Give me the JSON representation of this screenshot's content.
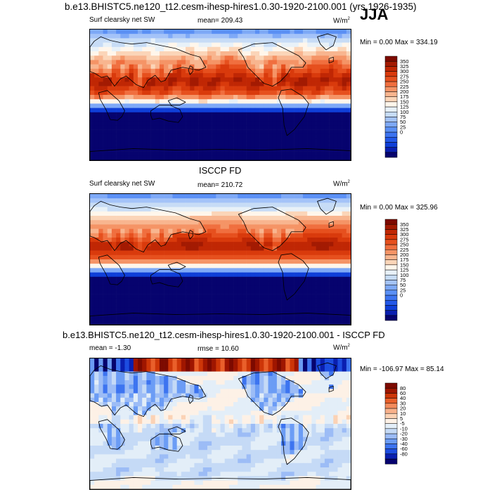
{
  "header": {
    "title": "b.e13.BHISTC5.ne120_t12.cesm-ihesp-hires1.0.30-1920-2100.001 (yrs 1926-1935)",
    "season": "JJA"
  },
  "colors": {
    "levels_abs": [
      "#06036e",
      "#0a1fb0",
      "#0f3fd8",
      "#2358e8",
      "#3d74f0",
      "#5b90f5",
      "#7ea9f7",
      "#a4c3f8",
      "#c7dcf6",
      "#e8f1f8",
      "#fff6eb",
      "#fbd5b8",
      "#f8b58f",
      "#f59466",
      "#f06f3f",
      "#e6501e",
      "#d93a0c",
      "#c02704",
      "#a31a02",
      "#7d0a00"
    ],
    "levels_diff": [
      "#06036e",
      "#0a1fb0",
      "#1d4de0",
      "#3d74f0",
      "#6b9cf5",
      "#9cbcf6",
      "#c5daf6",
      "#e3eef8",
      "#fdf1e6",
      "#fbd2b5",
      "#f8b18b",
      "#f38c5d",
      "#e9602b",
      "#cd3608",
      "#9f1600",
      "#7d0a00"
    ]
  },
  "chart_data": [
    {
      "type": "heatmap",
      "name": "model",
      "title": "b.e13.BHISTC5.ne120_t12.cesm-ihesp-hires1.0.30-1920-2100.001 (yrs 1926-1935)",
      "variable": "Surf clearsky net SW",
      "mean_label": "mean= 209.43",
      "units": "W/m",
      "units_sup": "2",
      "minmax": "Min =   0.00 Max = 334.19",
      "min": 0.0,
      "max": 334.19,
      "colorbar_ticks": [
        "350",
        "325",
        "300",
        "275",
        "250",
        "225",
        "200",
        "175",
        "150",
        "125",
        "100",
        "75",
        "50",
        "25",
        "0"
      ]
    },
    {
      "type": "heatmap",
      "name": "obs",
      "title": "ISCCP FD",
      "variable": "Surf clearsky net SW",
      "mean_label": "mean= 210.72",
      "units": "W/m",
      "units_sup": "2",
      "minmax": "Min =   0.00 Max = 325.96",
      "min": 0.0,
      "max": 325.96,
      "colorbar_ticks": [
        "350",
        "325",
        "300",
        "275",
        "250",
        "225",
        "200",
        "175",
        "150",
        "125",
        "100",
        "75",
        "50",
        "25",
        "0"
      ]
    },
    {
      "type": "heatmap",
      "name": "difference",
      "title": "b.e13.BHISTC5.ne120_t12.cesm-ihesp-hires1.0.30-1920-2100.001 - ISCCP FD",
      "mean_label": "mean =  -1.30",
      "rmse_label": "rmse =  10.60",
      "units": "W/m",
      "units_sup": "2",
      "minmax": "Min = -106.97 Max =  85.14",
      "min": -106.97,
      "max": 85.14,
      "colorbar_ticks": [
        "80",
        "60",
        "40",
        "30",
        "20",
        "10",
        "5",
        "-5",
        "-10",
        "-20",
        "-30",
        "-40",
        "-60",
        "-80"
      ]
    }
  ]
}
